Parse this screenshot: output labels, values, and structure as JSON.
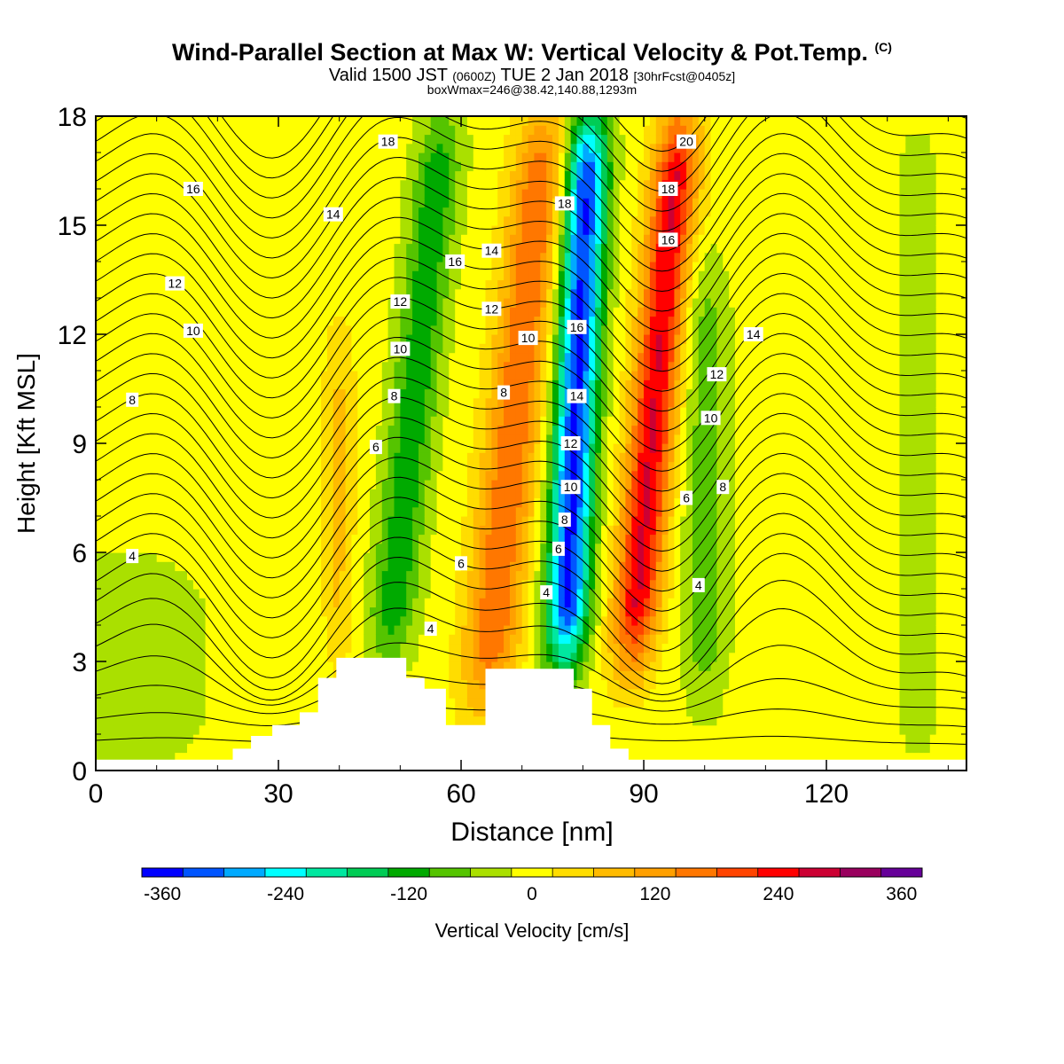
{
  "title": {
    "main": "Wind-Parallel Section at Max W: Vertical Velocity & Pot.Temp.",
    "main_suffix": "(C)",
    "sub_a": "Valid 1500 JST",
    "sub_b": "(0600Z)",
    "sub_c": "TUE 2 Jan 2018",
    "sub_d": "[30hrFcst@0405z]",
    "sub3": "boxWmax=246@38.42,140.88,1293m"
  },
  "colorbar": {
    "label": "Vertical Velocity [cm/s]",
    "ticks": [
      "-360",
      "-240",
      "-120",
      "0",
      "120",
      "240",
      "360"
    ],
    "colors": [
      "#0000ff",
      "#0055ff",
      "#00aaff",
      "#00ffff",
      "#00e8a0",
      "#00cc55",
      "#00aa00",
      "#55c400",
      "#aae000",
      "#ffff00",
      "#ffdd00",
      "#ffbb00",
      "#ffa000",
      "#ff7700",
      "#ff4400",
      "#ff0000",
      "#cc0033",
      "#99005e",
      "#660099"
    ]
  },
  "chart_data": {
    "type": "heatmap",
    "title": "Wind-Parallel Section at Max W: Vertical Velocity & Pot.Temp. (C)",
    "xlabel": "Distance [nm]",
    "ylabel": "Height [Kft MSL]",
    "xlim": [
      0,
      143
    ],
    "ylim": [
      0,
      18
    ],
    "xticks": [
      "0",
      "30",
      "60",
      "90",
      "120"
    ],
    "yticks": [
      "0",
      "3",
      "6",
      "9",
      "12",
      "15",
      "18"
    ],
    "grid": false,
    "field": "Vertical Velocity [cm/s]",
    "w_features": [
      {
        "x": 48,
        "z_bottom": 3,
        "z_top": 18,
        "tilt_nm": 9,
        "w": -120,
        "width_nm": 4
      },
      {
        "x": 64,
        "z_bottom": 2,
        "z_top": 18,
        "tilt_nm": 10,
        "w": 170,
        "width_nm": 4.5
      },
      {
        "x": 77,
        "z_bottom": 3,
        "z_top": 18,
        "tilt_nm": 4,
        "w": -330,
        "width_nm": 3.6
      },
      {
        "x": 88,
        "z_bottom": 3,
        "z_top": 18,
        "tilt_nm": 8,
        "w": 250,
        "width_nm": 3.8
      },
      {
        "x": 100,
        "z_bottom": 2,
        "z_top": 14,
        "tilt_nm": 0,
        "w": -75,
        "width_nm": 4
      },
      {
        "x": 40,
        "z_bottom": 3,
        "z_top": 12,
        "tilt_nm": 0,
        "w": 60,
        "width_nm": 2.5
      },
      {
        "x": 5,
        "z_bottom": 0,
        "z_top": 6,
        "tilt_nm": 0,
        "w": -40,
        "width_nm": 15
      },
      {
        "x": 135,
        "z_bottom": 0,
        "z_top": 18,
        "tilt_nm": 0,
        "w": -30,
        "width_nm": 5
      }
    ],
    "contour_field": "Pot.Temp. (C)",
    "contour_labels": [
      {
        "x": 48,
        "z": 17.3,
        "text": "18"
      },
      {
        "x": 77,
        "z": 15.6,
        "text": "18"
      },
      {
        "x": 97,
        "z": 17.3,
        "text": "20"
      },
      {
        "x": 94,
        "z": 16.0,
        "text": "18"
      },
      {
        "x": 16,
        "z": 16.0,
        "text": "16"
      },
      {
        "x": 39,
        "z": 15.3,
        "text": "14"
      },
      {
        "x": 59,
        "z": 14.0,
        "text": "16"
      },
      {
        "x": 65,
        "z": 14.3,
        "text": "14"
      },
      {
        "x": 94,
        "z": 14.6,
        "text": "16"
      },
      {
        "x": 13,
        "z": 13.4,
        "text": "12"
      },
      {
        "x": 50,
        "z": 12.9,
        "text": "12"
      },
      {
        "x": 65,
        "z": 12.7,
        "text": "12"
      },
      {
        "x": 79,
        "z": 12.2,
        "text": "16"
      },
      {
        "x": 71,
        "z": 11.9,
        "text": "10"
      },
      {
        "x": 108,
        "z": 12.0,
        "text": "14"
      },
      {
        "x": 16,
        "z": 12.1,
        "text": "10"
      },
      {
        "x": 50,
        "z": 11.6,
        "text": "10"
      },
      {
        "x": 102,
        "z": 10.9,
        "text": "12"
      },
      {
        "x": 79,
        "z": 10.3,
        "text": "14"
      },
      {
        "x": 49,
        "z": 10.3,
        "text": "8"
      },
      {
        "x": 67,
        "z": 10.4,
        "text": "8"
      },
      {
        "x": 6,
        "z": 10.2,
        "text": "8"
      },
      {
        "x": 101,
        "z": 9.7,
        "text": "10"
      },
      {
        "x": 78,
        "z": 9.0,
        "text": "12"
      },
      {
        "x": 46,
        "z": 8.9,
        "text": "6"
      },
      {
        "x": 103,
        "z": 7.8,
        "text": "8"
      },
      {
        "x": 78,
        "z": 7.8,
        "text": "10"
      },
      {
        "x": 97,
        "z": 7.5,
        "text": "6"
      },
      {
        "x": 77,
        "z": 6.9,
        "text": "8"
      },
      {
        "x": 6,
        "z": 5.9,
        "text": "4"
      },
      {
        "x": 76,
        "z": 6.1,
        "text": "6"
      },
      {
        "x": 60,
        "z": 5.7,
        "text": "6"
      },
      {
        "x": 99,
        "z": 5.1,
        "text": "4"
      },
      {
        "x": 74,
        "z": 4.9,
        "text": "4"
      },
      {
        "x": 55,
        "z": 3.9,
        "text": "4"
      }
    ],
    "terrain_top_kft": [
      [
        0,
        0.3
      ],
      [
        22.5,
        0.3
      ],
      [
        22.5,
        0.6
      ],
      [
        25.5,
        0.6
      ],
      [
        25.5,
        0.95
      ],
      [
        29,
        0.95
      ],
      [
        29,
        1.25
      ],
      [
        33.5,
        1.25
      ],
      [
        33.5,
        1.6
      ],
      [
        36.5,
        1.6
      ],
      [
        36.5,
        2.55
      ],
      [
        39.5,
        2.55
      ],
      [
        39.5,
        3.1
      ],
      [
        51,
        3.1
      ],
      [
        51,
        2.55
      ],
      [
        54,
        2.55
      ],
      [
        54,
        2.25
      ],
      [
        57.5,
        2.25
      ],
      [
        57.5,
        1.25
      ],
      [
        64,
        1.25
      ],
      [
        64,
        2.8
      ],
      [
        78.5,
        2.8
      ],
      [
        78.5,
        2.25
      ],
      [
        81.5,
        2.25
      ],
      [
        81.5,
        1.25
      ],
      [
        84.5,
        1.25
      ],
      [
        84.5,
        0.6
      ],
      [
        87.5,
        0.6
      ],
      [
        87.5,
        0.3
      ],
      [
        143,
        0.3
      ]
    ]
  }
}
